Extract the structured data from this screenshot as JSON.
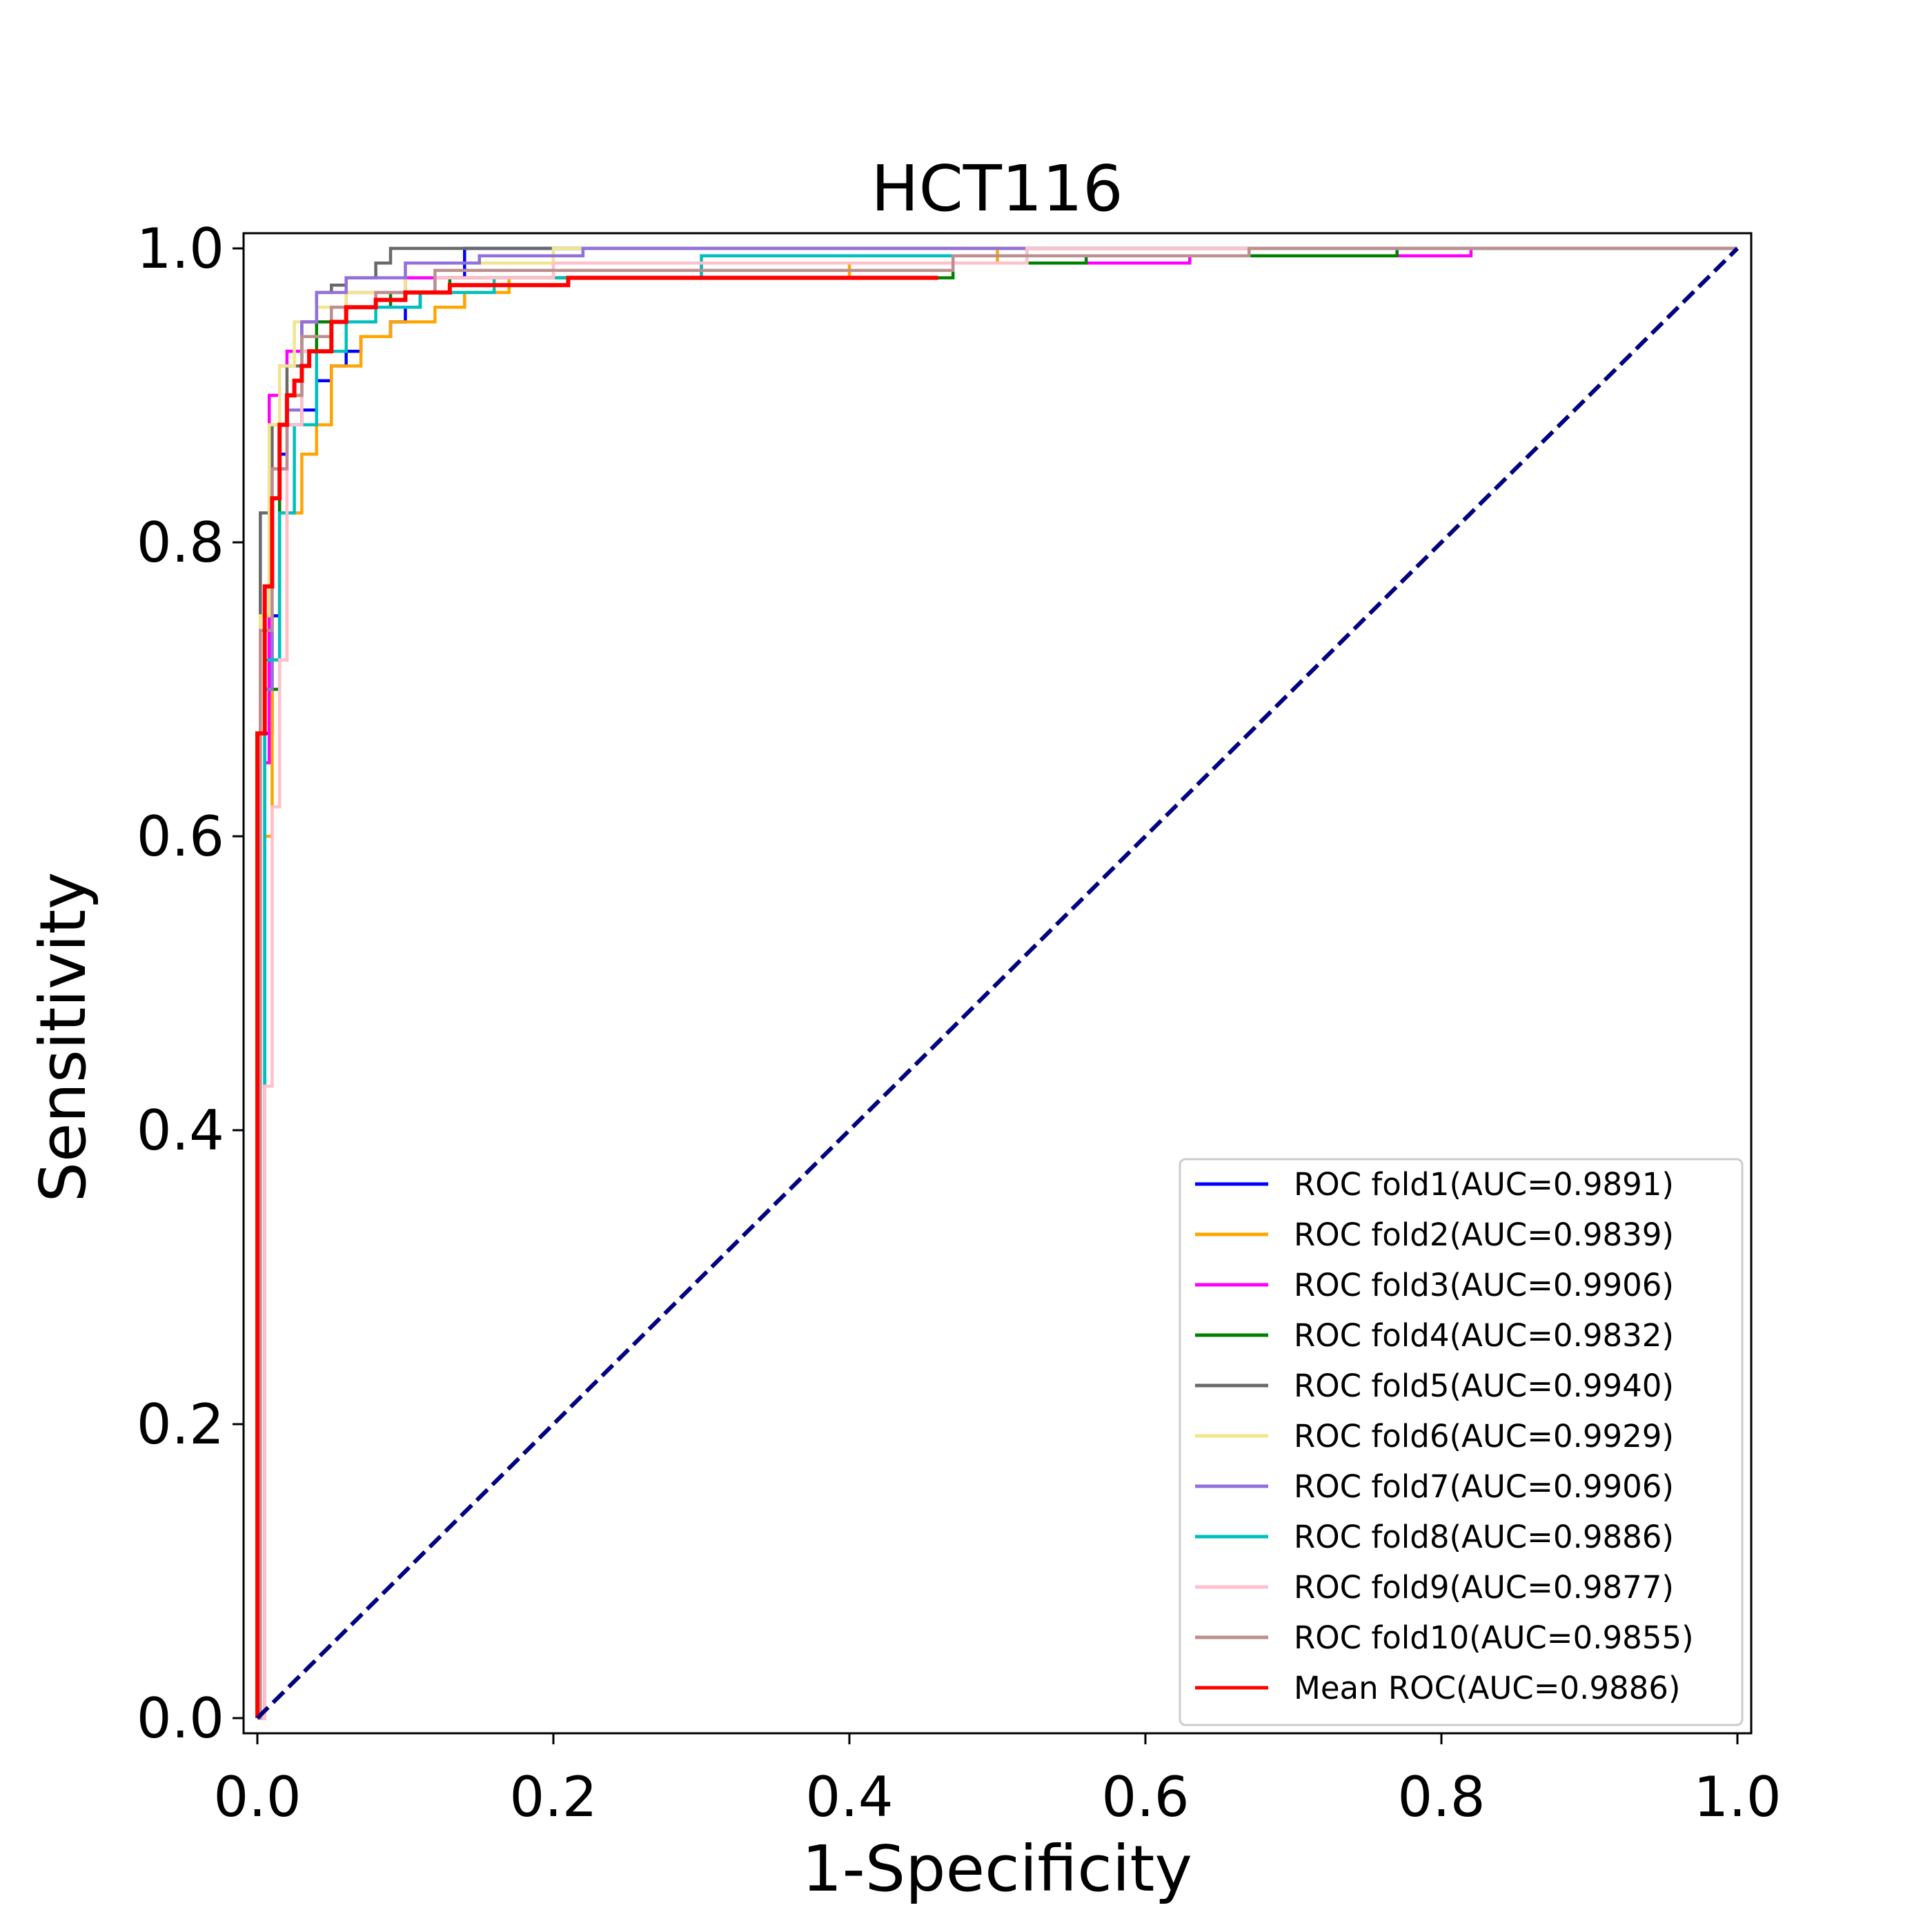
{
  "chart_data": {
    "type": "line",
    "title": "HCT116",
    "xlabel": "1-Specificity",
    "ylabel": "Sensitivity",
    "xlim": [
      0.0,
      1.0
    ],
    "ylim": [
      0.0,
      1.0
    ],
    "xticks": [
      "0.0",
      "0.2",
      "0.4",
      "0.6",
      "0.8",
      "1.0"
    ],
    "yticks": [
      "0.0",
      "0.2",
      "0.4",
      "0.6",
      "0.8",
      "1.0"
    ],
    "grid": false,
    "legend_position": "lower-right",
    "diagonal": {
      "color": "#000080",
      "style": "dashed",
      "x": [
        0,
        1
      ],
      "y": [
        0,
        1
      ]
    },
    "series": [
      {
        "name": "ROC fold1(AUC=0.9891)",
        "color": "#0000ff",
        "x": [
          0,
          0.005,
          0.005,
          0.01,
          0.01,
          0.015,
          0.015,
          0.02,
          0.02,
          0.03,
          0.03,
          0.04,
          0.04,
          0.05,
          0.05,
          0.06,
          0.06,
          0.07,
          0.07,
          0.09,
          0.09,
          0.1,
          0.1,
          0.11,
          0.11,
          0.12,
          0.12,
          0.14,
          0.14,
          1.0
        ],
        "y": [
          0,
          0,
          0.67,
          0.67,
          0.75,
          0.75,
          0.86,
          0.86,
          0.88,
          0.88,
          0.89,
          0.89,
          0.91,
          0.91,
          0.92,
          0.92,
          0.93,
          0.93,
          0.94,
          0.94,
          0.95,
          0.95,
          0.96,
          0.96,
          0.97,
          0.97,
          0.98,
          0.98,
          1.0,
          1.0
        ]
      },
      {
        "name": "ROC fold2(AUC=0.9839)",
        "color": "#ffa500",
        "x": [
          0,
          0.005,
          0.005,
          0.01,
          0.01,
          0.02,
          0.02,
          0.03,
          0.03,
          0.04,
          0.04,
          0.05,
          0.05,
          0.07,
          0.07,
          0.09,
          0.09,
          0.12,
          0.12,
          0.14,
          0.14,
          0.17,
          0.17,
          0.4,
          0.4,
          0.5,
          0.5,
          1.0
        ],
        "y": [
          0,
          0,
          0.6,
          0.6,
          0.72,
          0.72,
          0.82,
          0.82,
          0.86,
          0.86,
          0.88,
          0.88,
          0.92,
          0.92,
          0.94,
          0.94,
          0.95,
          0.95,
          0.96,
          0.96,
          0.97,
          0.97,
          0.98,
          0.98,
          0.99,
          0.99,
          1.0,
          1.0
        ]
      },
      {
        "name": "ROC fold3(AUC=0.9906)",
        "color": "#ff00ff",
        "x": [
          0,
          0.005,
          0.005,
          0.008,
          0.008,
          0.015,
          0.015,
          0.02,
          0.02,
          0.03,
          0.03,
          0.04,
          0.04,
          0.06,
          0.06,
          0.1,
          0.1,
          0.3,
          0.3,
          0.63,
          0.63,
          0.82,
          0.82,
          1.0
        ],
        "y": [
          0,
          0,
          0.65,
          0.65,
          0.9,
          0.9,
          0.92,
          0.92,
          0.93,
          0.93,
          0.95,
          0.95,
          0.96,
          0.96,
          0.97,
          0.97,
          0.98,
          0.98,
          0.99,
          0.99,
          0.995,
          0.995,
          1.0,
          1.0
        ]
      },
      {
        "name": "ROC fold4(AUC=0.9832)",
        "color": "#008000",
        "x": [
          0,
          0.005,
          0.005,
          0.015,
          0.015,
          0.02,
          0.02,
          0.03,
          0.03,
          0.04,
          0.04,
          0.06,
          0.06,
          0.09,
          0.09,
          0.13,
          0.13,
          0.47,
          0.47,
          0.56,
          0.56,
          0.77,
          0.77,
          1.0
        ],
        "y": [
          0,
          0,
          0.7,
          0.7,
          0.88,
          0.88,
          0.9,
          0.9,
          0.93,
          0.93,
          0.95,
          0.95,
          0.96,
          0.96,
          0.97,
          0.97,
          0.98,
          0.98,
          0.99,
          0.99,
          0.995,
          0.995,
          1.0,
          1.0
        ]
      },
      {
        "name": "ROC fold5(AUC=0.9940)",
        "color": "#696969",
        "x": [
          0,
          0.002,
          0.002,
          0.01,
          0.01,
          0.02,
          0.02,
          0.03,
          0.03,
          0.04,
          0.04,
          0.05,
          0.05,
          0.06,
          0.06,
          0.08,
          0.08,
          0.09,
          0.09,
          1.0
        ],
        "y": [
          0,
          0,
          0.82,
          0.82,
          0.88,
          0.88,
          0.92,
          0.92,
          0.95,
          0.95,
          0.97,
          0.97,
          0.975,
          0.975,
          0.98,
          0.98,
          0.99,
          0.99,
          1.0,
          1.0
        ]
      },
      {
        "name": "ROC fold6(AUC=0.9929)",
        "color": "#f0e68c",
        "x": [
          0,
          0.002,
          0.002,
          0.008,
          0.008,
          0.015,
          0.015,
          0.025,
          0.025,
          0.04,
          0.04,
          0.06,
          0.06,
          0.1,
          0.1,
          0.2,
          0.2,
          1.0
        ],
        "y": [
          0,
          0,
          0.75,
          0.75,
          0.88,
          0.88,
          0.92,
          0.92,
          0.95,
          0.95,
          0.96,
          0.96,
          0.97,
          0.97,
          0.99,
          0.99,
          1.0,
          1.0
        ]
      },
      {
        "name": "ROC fold7(AUC=0.9906)",
        "color": "#9370db",
        "x": [
          0,
          0.005,
          0.005,
          0.01,
          0.01,
          0.02,
          0.02,
          0.03,
          0.03,
          0.04,
          0.04,
          0.06,
          0.06,
          0.1,
          0.1,
          0.15,
          0.15,
          0.22,
          0.22,
          1.0
        ],
        "y": [
          0,
          0,
          0.7,
          0.7,
          0.85,
          0.85,
          0.89,
          0.89,
          0.95,
          0.95,
          0.97,
          0.97,
          0.98,
          0.98,
          0.99,
          0.99,
          0.995,
          0.995,
          1.0,
          1.0
        ]
      },
      {
        "name": "ROC fold8(AUC=0.9886)",
        "color": "#00bfbf",
        "x": [
          0,
          0.005,
          0.005,
          0.015,
          0.015,
          0.025,
          0.025,
          0.04,
          0.04,
          0.06,
          0.06,
          0.08,
          0.08,
          0.11,
          0.11,
          0.16,
          0.16,
          0.3,
          0.3,
          0.52,
          0.52,
          1.0
        ],
        "y": [
          0,
          0,
          0.72,
          0.72,
          0.82,
          0.82,
          0.88,
          0.88,
          0.93,
          0.93,
          0.95,
          0.95,
          0.96,
          0.96,
          0.97,
          0.97,
          0.98,
          0.98,
          0.995,
          0.995,
          1.0,
          1.0
        ]
      },
      {
        "name": "ROC fold9(AUC=0.9877)",
        "color": "#ffc0cb",
        "x": [
          0,
          0.005,
          0.005,
          0.01,
          0.01,
          0.015,
          0.015,
          0.02,
          0.02,
          0.03,
          0.03,
          0.05,
          0.05,
          0.08,
          0.08,
          0.12,
          0.12,
          0.2,
          0.2,
          0.52,
          0.52,
          1.0
        ],
        "y": [
          0,
          0,
          0.43,
          0.43,
          0.62,
          0.62,
          0.72,
          0.72,
          0.88,
          0.88,
          0.93,
          0.93,
          0.96,
          0.96,
          0.97,
          0.97,
          0.98,
          0.98,
          0.99,
          0.99,
          1.0,
          1.0
        ]
      },
      {
        "name": "ROC fold10(AUC=0.9855)",
        "color": "#bc8f8f",
        "x": [
          0,
          0.002,
          0.002,
          0.01,
          0.01,
          0.02,
          0.02,
          0.03,
          0.03,
          0.05,
          0.05,
          0.08,
          0.08,
          0.12,
          0.12,
          0.47,
          0.47,
          0.67,
          0.67,
          1.0
        ],
        "y": [
          0,
          0,
          0.74,
          0.74,
          0.85,
          0.85,
          0.9,
          0.9,
          0.94,
          0.94,
          0.96,
          0.96,
          0.97,
          0.97,
          0.985,
          0.985,
          0.995,
          0.995,
          1.0,
          1.0
        ]
      },
      {
        "name": "Mean ROC(AUC=0.9886)",
        "color": "#ff0000",
        "x": [
          0,
          0.0,
          0.005,
          0.005,
          0.01,
          0.01,
          0.015,
          0.015,
          0.02,
          0.02,
          0.025,
          0.025,
          0.03,
          0.03,
          0.035,
          0.035,
          0.04,
          0.04,
          0.05,
          0.05,
          0.06,
          0.06,
          0.08,
          0.08,
          0.1,
          0.1,
          0.13,
          0.13,
          0.21,
          0.21,
          0.46
        ],
        "y": [
          0,
          0.67,
          0.67,
          0.77,
          0.77,
          0.83,
          0.83,
          0.88,
          0.88,
          0.9,
          0.9,
          0.91,
          0.91,
          0.92,
          0.92,
          0.93,
          0.93,
          0.93,
          0.93,
          0.95,
          0.95,
          0.96,
          0.96,
          0.965,
          0.965,
          0.97,
          0.97,
          0.975,
          0.975,
          0.98,
          0.98
        ]
      }
    ]
  }
}
